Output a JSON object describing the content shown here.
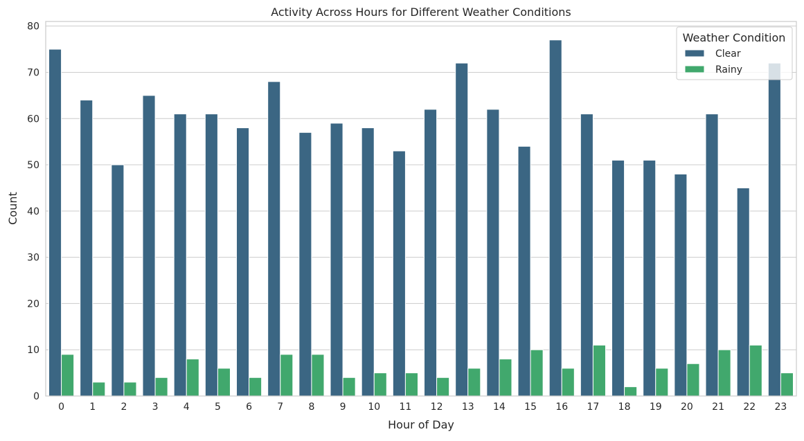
{
  "chart_data": {
    "type": "bar",
    "title": "Activity Across Hours for Different Weather Conditions",
    "xlabel": "Hour of Day",
    "ylabel": "Count",
    "categories": [
      "0",
      "1",
      "2",
      "3",
      "4",
      "5",
      "6",
      "7",
      "8",
      "9",
      "10",
      "11",
      "12",
      "13",
      "14",
      "15",
      "16",
      "17",
      "18",
      "19",
      "20",
      "21",
      "22",
      "23"
    ],
    "series": [
      {
        "name": "Clear",
        "color": "#3b6683",
        "values": [
          75,
          64,
          50,
          65,
          61,
          61,
          58,
          68,
          57,
          59,
          58,
          53,
          62,
          72,
          62,
          54,
          77,
          61,
          51,
          51,
          48,
          61,
          45,
          72
        ]
      },
      {
        "name": "Rainy",
        "color": "#41a86d",
        "values": [
          9,
          3,
          3,
          4,
          8,
          6,
          4,
          9,
          9,
          4,
          5,
          5,
          4,
          6,
          8,
          10,
          6,
          11,
          2,
          6,
          7,
          10,
          11,
          5
        ]
      }
    ],
    "ylim": [
      0,
      81
    ],
    "yticks": [
      0,
      10,
      20,
      30,
      40,
      50,
      60,
      70,
      80
    ],
    "grid": "horizontal",
    "legend": {
      "title": "Weather Condition",
      "placement": "top-right"
    }
  }
}
